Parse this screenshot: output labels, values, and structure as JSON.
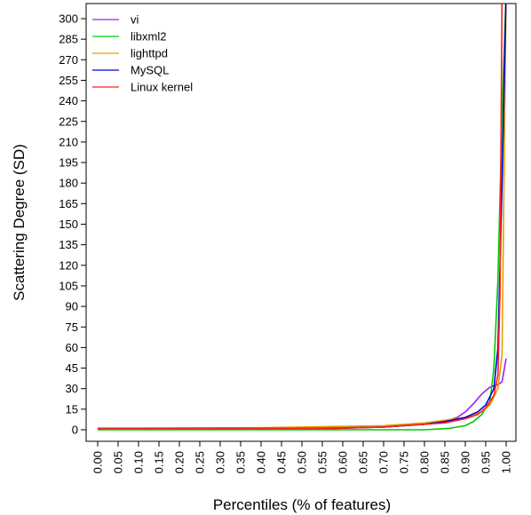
{
  "chart_data": {
    "type": "line",
    "xlabel": "Percentiles (% of features)",
    "ylabel": "Scattering Degree (SD)",
    "xlim": [
      0,
      1
    ],
    "ylim": [
      0,
      300
    ],
    "x_ticks": [
      "0.00",
      "0.05",
      "0.10",
      "0.15",
      "0.20",
      "0.25",
      "0.30",
      "0.35",
      "0.40",
      "0.45",
      "0.50",
      "0.55",
      "0.60",
      "0.65",
      "0.70",
      "0.75",
      "0.80",
      "0.85",
      "0.90",
      "0.95",
      "1.00"
    ],
    "y_ticks": [
      "0",
      "15",
      "30",
      "45",
      "60",
      "75",
      "90",
      "105",
      "120",
      "135",
      "150",
      "165",
      "180",
      "195",
      "210",
      "225",
      "240",
      "255",
      "270",
      "285",
      "300"
    ],
    "grid": false,
    "legend_position": "top-left",
    "series": [
      {
        "name": "vi",
        "color": "#A020F0",
        "points": [
          [
            0,
            1
          ],
          [
            0.4,
            1
          ],
          [
            0.7,
            2
          ],
          [
            0.8,
            4
          ],
          [
            0.85,
            6
          ],
          [
            0.88,
            9
          ],
          [
            0.9,
            13
          ],
          [
            0.92,
            19
          ],
          [
            0.94,
            26
          ],
          [
            0.96,
            31
          ],
          [
            0.98,
            33
          ],
          [
            0.99,
            35
          ],
          [
            1.0,
            52
          ]
        ]
      },
      {
        "name": "libxml2",
        "color": "#00CC00",
        "points": [
          [
            0,
            0
          ],
          [
            0.6,
            0
          ],
          [
            0.8,
            0
          ],
          [
            0.86,
            1
          ],
          [
            0.9,
            3
          ],
          [
            0.92,
            6
          ],
          [
            0.94,
            11
          ],
          [
            0.96,
            20
          ],
          [
            0.97,
            45
          ],
          [
            0.98,
            110
          ],
          [
            0.99,
            230
          ],
          [
            1.0,
            320
          ]
        ]
      },
      {
        "name": "lighttpd",
        "color": "#E69F00",
        "points": [
          [
            0,
            1
          ],
          [
            0.4,
            1.5
          ],
          [
            0.5,
            2
          ],
          [
            0.6,
            2.5
          ],
          [
            0.7,
            3
          ],
          [
            0.8,
            5
          ],
          [
            0.85,
            7
          ],
          [
            0.9,
            9
          ],
          [
            0.92,
            11
          ],
          [
            0.94,
            13
          ],
          [
            0.96,
            18
          ],
          [
            0.98,
            30
          ],
          [
            0.99,
            55
          ],
          [
            1.0,
            320
          ]
        ]
      },
      {
        "name": "MySQL",
        "color": "#0000CC",
        "points": [
          [
            0,
            1
          ],
          [
            0.58,
            1
          ],
          [
            0.7,
            2
          ],
          [
            0.8,
            4
          ],
          [
            0.85,
            6
          ],
          [
            0.9,
            9
          ],
          [
            0.93,
            13
          ],
          [
            0.95,
            18
          ],
          [
            0.97,
            30
          ],
          [
            0.98,
            60
          ],
          [
            0.99,
            180
          ],
          [
            1.0,
            320
          ]
        ]
      },
      {
        "name": "Linux kernel",
        "color": "#FF2020",
        "points": [
          [
            0,
            1
          ],
          [
            0.58,
            1
          ],
          [
            0.7,
            2
          ],
          [
            0.8,
            4
          ],
          [
            0.85,
            5
          ],
          [
            0.9,
            8
          ],
          [
            0.93,
            11
          ],
          [
            0.95,
            16
          ],
          [
            0.97,
            25
          ],
          [
            0.98,
            40
          ],
          [
            0.985,
            100
          ],
          [
            0.99,
            320
          ]
        ]
      }
    ]
  }
}
